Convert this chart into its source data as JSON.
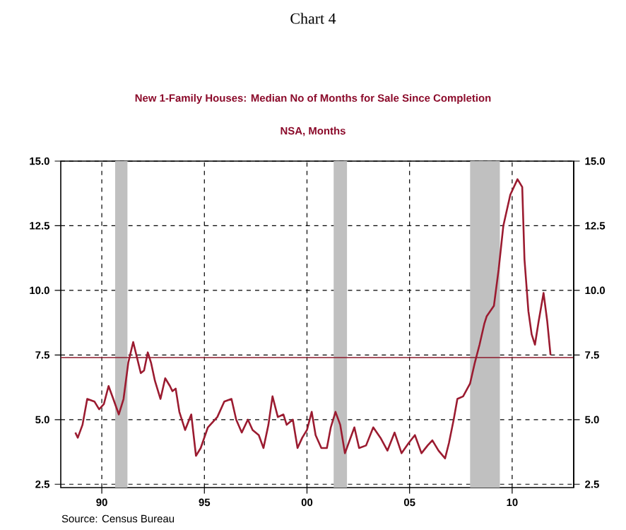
{
  "chart_data": {
    "type": "line",
    "title": "Chart 4",
    "subtitle": "New 1-Family Houses: Median No of Months for Sale Since Completion",
    "ylabel": "NSA, Months",
    "annotations": [
      "Source:  Census Bureau"
    ],
    "series": [
      {
        "color": "#9b1b30",
        "x": [
          1988.71,
          1988.83,
          1989.06,
          1989.29,
          1989.64,
          1989.87,
          1990.1,
          1990.33,
          1990.56,
          1990.83,
          1991.06,
          1991.29,
          1991.53,
          1991.9,
          1992.06,
          1992.24,
          1992.4,
          1992.59,
          1992.86,
          1993.09,
          1993.32,
          1993.44,
          1993.6,
          1993.78,
          1994.06,
          1994.36,
          1994.59,
          1994.82,
          1995.17,
          1995.63,
          1995.97,
          1996.32,
          1996.55,
          1996.82,
          1997.12,
          1997.35,
          1997.65,
          1997.88,
          1998.12,
          1998.32,
          1998.58,
          1998.85,
          1999.01,
          1999.31,
          1999.54,
          1999.77,
          2000.0,
          2000.23,
          2000.42,
          2000.7,
          2000.97,
          2001.16,
          2001.39,
          2001.62,
          2001.85,
          2002.08,
          2002.31,
          2002.54,
          2002.88,
          2003.23,
          2003.58,
          2003.92,
          2004.27,
          2004.61,
          2004.96,
          2005.26,
          2005.58,
          2005.88,
          2006.11,
          2006.41,
          2006.73,
          2006.92,
          2007.15,
          2007.33,
          2007.61,
          2007.95,
          2008.18,
          2008.41,
          2008.64,
          2008.76,
          2009.11,
          2009.34,
          2009.57,
          2009.91,
          2010.26,
          2010.49,
          2010.6,
          2010.79,
          2010.95,
          2011.11,
          2011.29,
          2011.53,
          2011.71,
          2011.87
        ],
        "values": [
          4.5,
          4.3,
          4.8,
          5.8,
          5.7,
          5.4,
          5.6,
          6.3,
          5.8,
          5.2,
          5.8,
          7.2,
          8.0,
          6.8,
          6.9,
          7.6,
          7.2,
          6.5,
          5.8,
          6.6,
          6.3,
          6.1,
          6.2,
          5.3,
          4.6,
          5.2,
          3.6,
          3.9,
          4.7,
          5.1,
          5.7,
          5.8,
          5.0,
          4.5,
          5.0,
          4.6,
          4.4,
          3.9,
          4.8,
          5.9,
          5.1,
          5.2,
          4.8,
          5.0,
          3.9,
          4.3,
          4.6,
          5.3,
          4.4,
          3.9,
          3.9,
          4.7,
          5.3,
          4.8,
          3.7,
          4.2,
          4.7,
          3.9,
          4.0,
          4.7,
          4.3,
          3.8,
          4.5,
          3.7,
          4.1,
          4.4,
          3.7,
          4.0,
          4.2,
          3.8,
          3.5,
          4.1,
          5.0,
          5.8,
          5.9,
          6.4,
          7.2,
          7.9,
          8.7,
          9.0,
          9.4,
          10.8,
          12.5,
          13.7,
          14.3,
          14.0,
          11.2,
          9.2,
          8.3,
          7.9,
          8.8,
          9.9,
          8.8,
          7.5
        ]
      }
    ],
    "xlim": [
      1988,
      2013
    ],
    "ylim": [
      2.37,
      15
    ],
    "xticks": [
      {
        "value": 1990,
        "label": "90"
      },
      {
        "value": 1995,
        "label": "95"
      },
      {
        "value": 2000,
        "label": "00"
      },
      {
        "value": 2005,
        "label": "05"
      },
      {
        "value": 2010,
        "label": "10"
      }
    ],
    "yticks": [
      2.5,
      {
        "value": 5,
        "label": "5.0"
      },
      7.5,
      {
        "value": 10,
        "label": "10.0"
      },
      12.5,
      {
        "value": 15,
        "label": "15.0"
      }
    ],
    "y2lim": [
      2.37,
      15
    ],
    "y2ticks": [
      2.5,
      {
        "value": 5,
        "label": "5.0"
      },
      7.5,
      {
        "value": 10,
        "label": "10.0"
      },
      12.5,
      {
        "value": 15,
        "label": "15.0"
      }
    ],
    "ref_lines": [
      {
        "axis": "y",
        "value": 7.4,
        "color": "#8b1a2b"
      }
    ],
    "bands": [
      {
        "axis": "x",
        "from": 1990.65,
        "to": 1991.25,
        "color": "#c0c0c0"
      },
      {
        "axis": "x",
        "from": 2001.3,
        "to": 2001.95,
        "color": "#c0c0c0"
      },
      {
        "axis": "x",
        "from": 2007.95,
        "to": 2009.4,
        "color": "#c0c0c0"
      }
    ],
    "grid": true,
    "marker": "none"
  }
}
